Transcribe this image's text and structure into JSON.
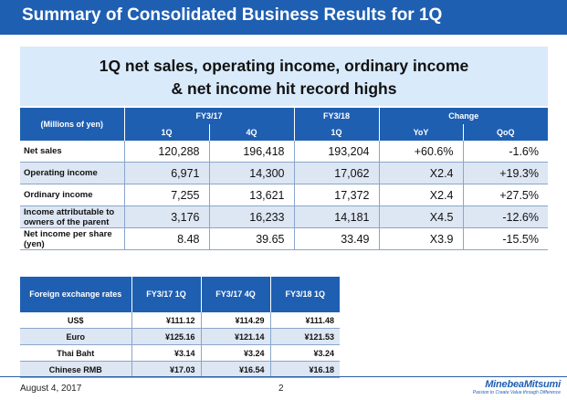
{
  "title": "Summary of Consolidated Business Results for 1Q",
  "headline": {
    "line1": "1Q net sales, operating income, ordinary income",
    "line2": "& net income hit record highs"
  },
  "results_table": {
    "unit_label": "(Millions of yen)",
    "group_headers": [
      "FY3/17",
      "FY3/18",
      "Change"
    ],
    "sub_headers": [
      "1Q",
      "4Q",
      "1Q",
      "YoY",
      "QoQ"
    ],
    "rows": [
      {
        "label": "Net sales",
        "values": [
          "120,288",
          "196,418",
          "193,204",
          "+60.6%",
          "-1.6%"
        ]
      },
      {
        "label": "Operating income",
        "values": [
          "6,971",
          "14,300",
          "17,062",
          "X2.4",
          "+19.3%"
        ]
      },
      {
        "label": "Ordinary income",
        "values": [
          "7,255",
          "13,621",
          "17,372",
          "X2.4",
          "+27.5%"
        ]
      },
      {
        "label": "Income attributable to owners of the parent",
        "values": [
          "3,176",
          "16,233",
          "14,181",
          "X4.5",
          "-12.6%"
        ]
      },
      {
        "label": "Net income per share (yen)",
        "values": [
          "8.48",
          "39.65",
          "33.49",
          "X3.9",
          "-15.5%"
        ]
      }
    ]
  },
  "fx_table": {
    "headers": [
      "Foreign exchange rates",
      "FY3/17 1Q",
      "FY3/17 4Q",
      "FY3/18 1Q"
    ],
    "rows": [
      {
        "label": "US$",
        "values": [
          "¥111.12",
          "¥114.29",
          "¥111.48"
        ]
      },
      {
        "label": "Euro",
        "values": [
          "¥125.16",
          "¥121.14",
          "¥121.53"
        ]
      },
      {
        "label": "Thai Baht",
        "values": [
          "¥3.14",
          "¥3.24",
          "¥3.24"
        ]
      },
      {
        "label": "Chinese RMB",
        "values": [
          "¥17.03",
          "¥16.54",
          "¥16.18"
        ]
      }
    ]
  },
  "footer": {
    "date": "August 4, 2017",
    "page": "2",
    "brand": "MinebeaMitsumi",
    "tagline": "Passion to Create Value through Difference"
  },
  "colors": {
    "accent": "#1f5fb2",
    "headline_bg": "#d9eafb",
    "row_alt": "#dde6f3"
  }
}
